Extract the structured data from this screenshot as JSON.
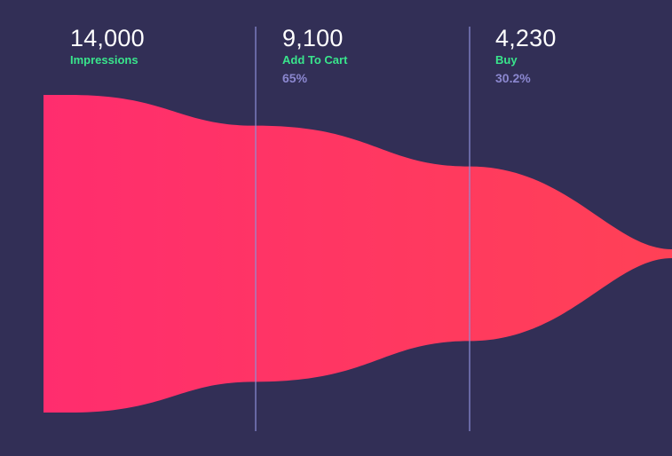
{
  "colors": {
    "background": "#322f56",
    "funnel_start": "#ff2d6e",
    "funnel_end": "#ff4156",
    "divider": "#8c8fd8",
    "stage_name": "#39e58c",
    "rate": "#8b87cf",
    "value": "#ffffff"
  },
  "chart_data": {
    "type": "funnel",
    "stages": [
      {
        "value_label": "14,000",
        "value": 14000,
        "name": "Impressions",
        "rate": ""
      },
      {
        "value_label": "9,100",
        "value": 9100,
        "name": "Add To Cart",
        "rate": "65%"
      },
      {
        "value_label": "4,230",
        "value": 4230,
        "name": "Buy",
        "rate": "30.2%"
      }
    ]
  }
}
